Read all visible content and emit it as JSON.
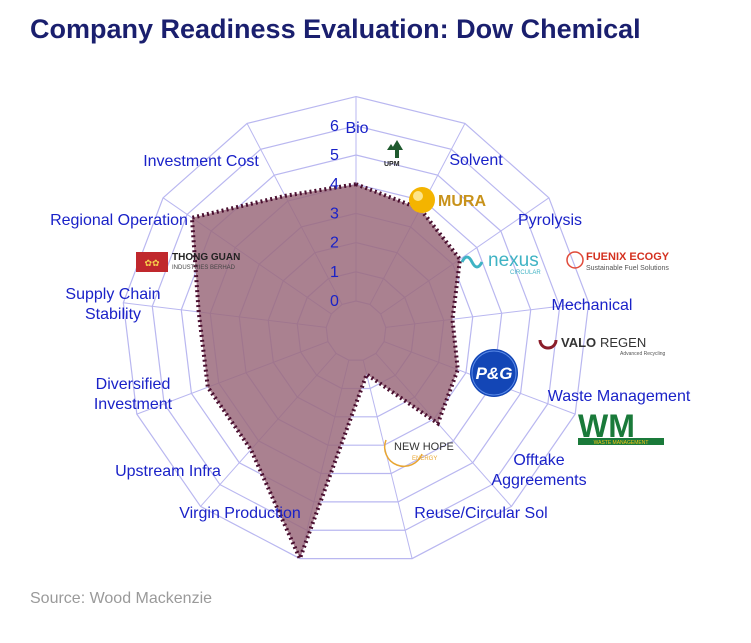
{
  "title": "Company Readiness Evaluation: Dow Chemical",
  "source": "Source: Wood Mackenzie",
  "colors": {
    "title": "#1a1f6e",
    "label": "#1a22c8",
    "grid": "#b9b7f0",
    "fill": "#9b6b7c",
    "outline": "#4a0f30"
  },
  "chart_data": {
    "type": "radar",
    "title": "Company Readiness Evaluation: Dow Chemical",
    "rlim": [
      0,
      6
    ],
    "ticks": [
      0,
      1,
      2,
      3,
      4,
      5,
      6
    ],
    "categories": [
      "Bio",
      "Solvent",
      "Pyrolysis",
      "Mechanical",
      "Waste Management",
      "Offtake\nAggreements",
      "Reuse/Circular Sol",
      "Virgin Production",
      "Upstream Infra",
      "Diversified\nInvestment",
      "Supply Chain\nStability",
      "Regional Operation",
      "Investment Cost"
    ],
    "series": [
      {
        "values": [
          4.0,
          3.7,
          3.3,
          2.3,
          2.7,
          3.2,
          0.5,
          7.0,
          4.4,
          4.4,
          4.4,
          5.8,
          4.2
        ]
      }
    ]
  },
  "logos": {
    "upm": "UPM",
    "mura": "MURA",
    "nexus": "nexus",
    "nexus_sub": "CIRCULAR",
    "fuenix": "FUENIX ECOGY",
    "fuenix_sub": "Sustainable Fuel Solutions",
    "valoregen_a": "VALO",
    "valoregen_b": "REGEN",
    "valoregen_sub": "Advanced Recycling",
    "pg": "P&G",
    "wm": "WM",
    "wm_sub": "WASTE MANAGEMENT",
    "newhope": "NEW HOPE",
    "newhope_sub": "ENERGY",
    "thongguan": "THONG GUAN",
    "thongguan_sub": "INDUSTRIES BERHAD"
  }
}
